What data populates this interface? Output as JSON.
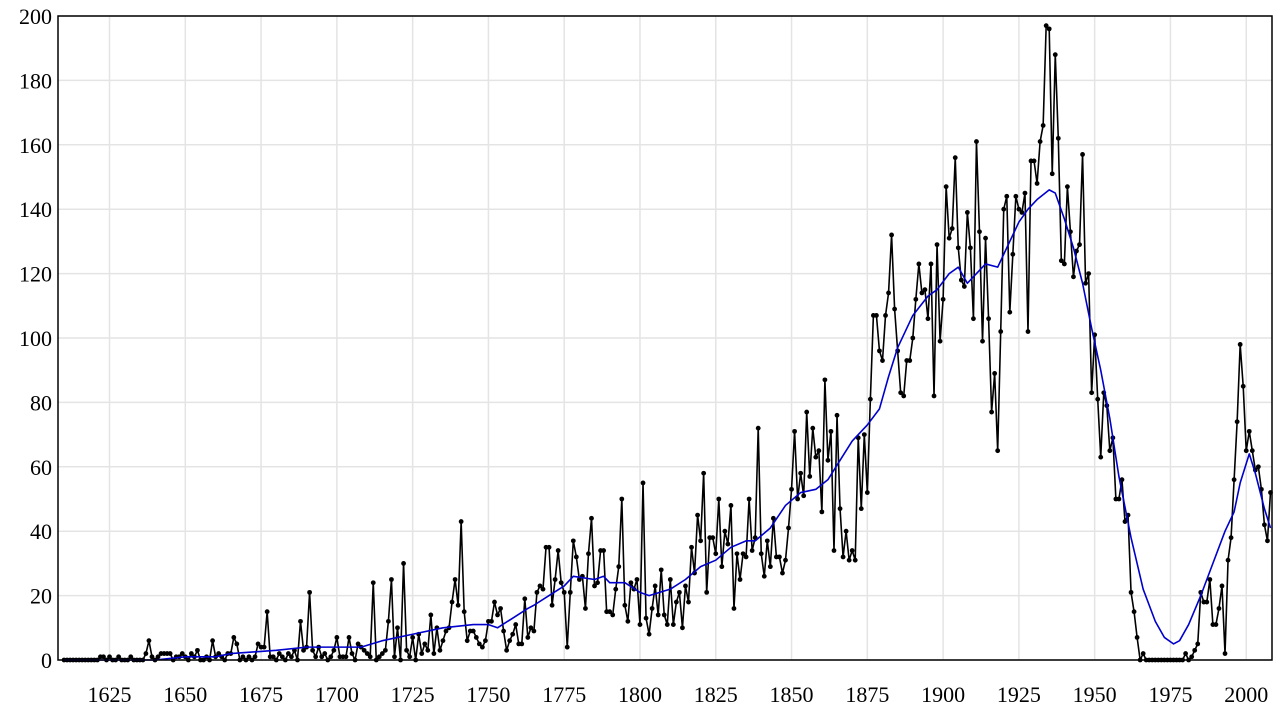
{
  "chart_data": {
    "type": "line",
    "x": [
      1610,
      1611,
      1612,
      1613,
      1614,
      1615,
      1616,
      1617,
      1618,
      1619,
      1620,
      1621,
      1622,
      1623,
      1624,
      1625,
      1626,
      1627,
      1628,
      1629,
      1630,
      1631,
      1632,
      1633,
      1634,
      1635,
      1636,
      1637,
      1638,
      1639,
      1640,
      1641,
      1642,
      1643,
      1644,
      1645,
      1646,
      1647,
      1648,
      1649,
      1650,
      1651,
      1652,
      1653,
      1654,
      1655,
      1656,
      1657,
      1658,
      1659,
      1660,
      1661,
      1662,
      1663,
      1664,
      1665,
      1666,
      1667,
      1668,
      1669,
      1670,
      1671,
      1672,
      1673,
      1674,
      1675,
      1676,
      1677,
      1678,
      1679,
      1680,
      1681,
      1682,
      1683,
      1684,
      1685,
      1686,
      1687,
      1688,
      1689,
      1690,
      1691,
      1692,
      1693,
      1694,
      1695,
      1696,
      1697,
      1698,
      1699,
      1700,
      1701,
      1702,
      1703,
      1704,
      1705,
      1706,
      1707,
      1708,
      1709,
      1710,
      1711,
      1712,
      1713,
      1714,
      1715,
      1716,
      1717,
      1718,
      1719,
      1720,
      1721,
      1722,
      1723,
      1724,
      1725,
      1726,
      1727,
      1728,
      1729,
      1730,
      1731,
      1732,
      1733,
      1734,
      1735,
      1736,
      1737,
      1738,
      1739,
      1740,
      1741,
      1742,
      1743,
      1744,
      1745,
      1746,
      1747,
      1748,
      1749,
      1750,
      1751,
      1752,
      1753,
      1754,
      1755,
      1756,
      1757,
      1758,
      1759,
      1760,
      1761,
      1762,
      1763,
      1764,
      1765,
      1766,
      1767,
      1768,
      1769,
      1770,
      1771,
      1772,
      1773,
      1774,
      1775,
      1776,
      1777,
      1778,
      1779,
      1780,
      1781,
      1782,
      1783,
      1784,
      1785,
      1786,
      1787,
      1788,
      1789,
      1790,
      1791,
      1792,
      1793,
      1794,
      1795,
      1796,
      1797,
      1798,
      1799,
      1800,
      1801,
      1802,
      1803,
      1804,
      1805,
      1806,
      1807,
      1808,
      1809,
      1810,
      1811,
      1812,
      1813,
      1814,
      1815,
      1816,
      1817,
      1818,
      1819,
      1820,
      1821,
      1822,
      1823,
      1824,
      1825,
      1826,
      1827,
      1828,
      1829,
      1830,
      1831,
      1832,
      1833,
      1834,
      1835,
      1836,
      1837,
      1838,
      1839,
      1840,
      1841,
      1842,
      1843,
      1844,
      1845,
      1846,
      1847,
      1848,
      1849,
      1850,
      1851,
      1852,
      1853,
      1854,
      1855,
      1856,
      1857,
      1858,
      1859,
      1860,
      1861,
      1862,
      1863,
      1864,
      1865,
      1866,
      1867,
      1868,
      1869,
      1870,
      1871,
      1872,
      1873,
      1874,
      1875,
      1876,
      1877,
      1878,
      1879,
      1880,
      1881,
      1882,
      1883,
      1884,
      1885,
      1886,
      1887,
      1888,
      1889,
      1890,
      1891,
      1892,
      1893,
      1894,
      1895,
      1896,
      1897,
      1898,
      1899,
      1900,
      1901,
      1902,
      1903,
      1904,
      1905,
      1906,
      1907,
      1908,
      1909,
      1910,
      1911,
      1912,
      1913,
      1914,
      1915,
      1916,
      1917,
      1918,
      1919,
      1920,
      1921,
      1922,
      1923,
      1924,
      1925,
      1926,
      1927,
      1928,
      1929,
      1930,
      1931,
      1932,
      1933,
      1934,
      1935,
      1936,
      1937,
      1938,
      1939,
      1940,
      1941,
      1942,
      1943,
      1944,
      1945,
      1946,
      1947,
      1948,
      1949,
      1950,
      1951,
      1952,
      1953,
      1954,
      1955,
      1956,
      1957,
      1958,
      1959,
      1960,
      1961,
      1962,
      1963,
      1964,
      1965,
      1966,
      1967,
      1968,
      1969,
      1970,
      1971,
      1972,
      1973,
      1974,
      1975,
      1976,
      1977,
      1978,
      1979,
      1980,
      1981,
      1982,
      1983,
      1984,
      1985,
      1986,
      1987,
      1988,
      1989,
      1990,
      1991,
      1992,
      1993,
      1994,
      1995,
      1996,
      1997,
      1998,
      1999,
      2000,
      2001,
      2002,
      2003,
      2004,
      2005,
      2006,
      2007,
      2008
    ],
    "series": [
      {
        "color": "#000000",
        "markers": true,
        "values": [
          0,
          0,
          0,
          0,
          0,
          0,
          0,
          0,
          0,
          0,
          0,
          0,
          1,
          1,
          0,
          1,
          0,
          0,
          1,
          0,
          0,
          0,
          1,
          0,
          0,
          0,
          0,
          2,
          6,
          1,
          0,
          1,
          2,
          2,
          2,
          2,
          0,
          1,
          1,
          2,
          1,
          0,
          2,
          1,
          3,
          0,
          0,
          1,
          0,
          6,
          1,
          2,
          1,
          0,
          2,
          2,
          7,
          5,
          0,
          1,
          0,
          1,
          0,
          1,
          5,
          4,
          4,
          15,
          1,
          1,
          0,
          2,
          1,
          0,
          2,
          1,
          3,
          0,
          12,
          3,
          4,
          21,
          3,
          1,
          4,
          1,
          2,
          0,
          1,
          3,
          7,
          1,
          1,
          1,
          7,
          2,
          0,
          5,
          4,
          3,
          2,
          1,
          24,
          0,
          1,
          2,
          3,
          12,
          25,
          1,
          10,
          0,
          30,
          3,
          1,
          7,
          0,
          8,
          2,
          5,
          3,
          14,
          2,
          10,
          3,
          6,
          9,
          10,
          18,
          25,
          17,
          43,
          15,
          6,
          9,
          9,
          7,
          5,
          4,
          6,
          12,
          12,
          18,
          14,
          16,
          9,
          3,
          6,
          8,
          11,
          5,
          5,
          19,
          7,
          10,
          9,
          21,
          23,
          22,
          35,
          35,
          17,
          25,
          34,
          24,
          21,
          4,
          21,
          37,
          32,
          25,
          26,
          16,
          33,
          44,
          23,
          24,
          34,
          34,
          15,
          15,
          14,
          22,
          29,
          50,
          17,
          12,
          24,
          22,
          25,
          11,
          55,
          13,
          8,
          16,
          23,
          14,
          28,
          14,
          11,
          25,
          11,
          18,
          21,
          10,
          23,
          18,
          35,
          27,
          45,
          37,
          58,
          21,
          38,
          38,
          33,
          50,
          29,
          40,
          36,
          48,
          16,
          33,
          25,
          33,
          32,
          50,
          34,
          38,
          72,
          33,
          26,
          37,
          29,
          44,
          32,
          32,
          27,
          31,
          41,
          53,
          71,
          50,
          58,
          51,
          77,
          57,
          72,
          63,
          65,
          46,
          87,
          62,
          71,
          34,
          76,
          47,
          32,
          40,
          31,
          34,
          31,
          69,
          47,
          70,
          52,
          81,
          107,
          107,
          96,
          93,
          107,
          114,
          132,
          109,
          96,
          83,
          82,
          93,
          93,
          100,
          112,
          123,
          114,
          115,
          106,
          123,
          82,
          129,
          99,
          112,
          147,
          131,
          134,
          156,
          128,
          118,
          116,
          139,
          128,
          106,
          161,
          133,
          99,
          131,
          106,
          77,
          89,
          65,
          102,
          140,
          144,
          108,
          126,
          144,
          140,
          139,
          145,
          102,
          155,
          155,
          148,
          161,
          166,
          197,
          196,
          151,
          188,
          162,
          124,
          123,
          147,
          133,
          119,
          127,
          129,
          157,
          117,
          120,
          83,
          101,
          81,
          63,
          83,
          79,
          65,
          69,
          50,
          50,
          56,
          43,
          45,
          21,
          15,
          7,
          0,
          2,
          0,
          0,
          0,
          0,
          0,
          0,
          0,
          0,
          0,
          0,
          0,
          0,
          0,
          2,
          0,
          1,
          3,
          5,
          21,
          18,
          18,
          25,
          11,
          11,
          16,
          23,
          2,
          31,
          38,
          56,
          74,
          98,
          85,
          65,
          71,
          65,
          59,
          60,
          53,
          42,
          37,
          52
        ]
      },
      {
        "color": "#0000cc",
        "markers": false,
        "x": [
          1610,
          1640,
          1650,
          1660,
          1665,
          1680,
          1690,
          1700,
          1708,
          1715,
          1725,
          1735,
          1745,
          1750,
          1753,
          1758,
          1763,
          1765,
          1770,
          1775,
          1778,
          1785,
          1788,
          1790,
          1795,
          1800,
          1803,
          1810,
          1815,
          1820,
          1825,
          1830,
          1835,
          1838,
          1843,
          1848,
          1853,
          1858,
          1862,
          1866,
          1870,
          1875,
          1879,
          1882,
          1885,
          1890,
          1895,
          1898,
          1902,
          1905,
          1908,
          1911,
          1914,
          1918,
          1921,
          1925,
          1928,
          1931,
          1935,
          1937,
          1940,
          1943,
          1946,
          1949,
          1952,
          1955,
          1958,
          1962,
          1966,
          1970,
          1973,
          1976,
          1978,
          1981,
          1985,
          1989,
          1993,
          1996,
          1998,
          2001,
          2003,
          2006,
          2008
        ],
        "values": [
          0,
          0,
          1,
          1,
          2,
          3,
          4,
          4,
          4,
          6,
          8,
          10,
          11,
          11,
          10,
          13,
          16,
          17,
          20,
          23,
          26,
          25,
          26,
          24,
          24,
          21,
          20,
          22,
          25,
          29,
          31,
          35,
          37,
          37,
          41,
          48,
          52,
          53,
          56,
          62,
          68,
          73,
          78,
          88,
          97,
          107,
          113,
          115,
          120,
          122,
          117,
          120,
          123,
          122,
          128,
          136,
          140,
          143,
          146,
          145,
          137,
          128,
          117,
          103,
          90,
          75,
          57,
          38,
          22,
          12,
          7,
          5,
          6,
          11,
          20,
          30,
          40,
          46,
          55,
          64,
          58,
          47,
          41
        ]
      }
    ],
    "xlim": [
      1608,
      2008.5
    ],
    "xticks": [
      1625,
      1650,
      1675,
      1700,
      1725,
      1750,
      1775,
      1800,
      1825,
      1850,
      1875,
      1900,
      1925,
      1950,
      1975,
      2000
    ],
    "ylim": [
      0,
      200
    ],
    "yticks": [
      0,
      20,
      40,
      60,
      80,
      100,
      120,
      140,
      160,
      180,
      200
    ],
    "grid": true
  }
}
